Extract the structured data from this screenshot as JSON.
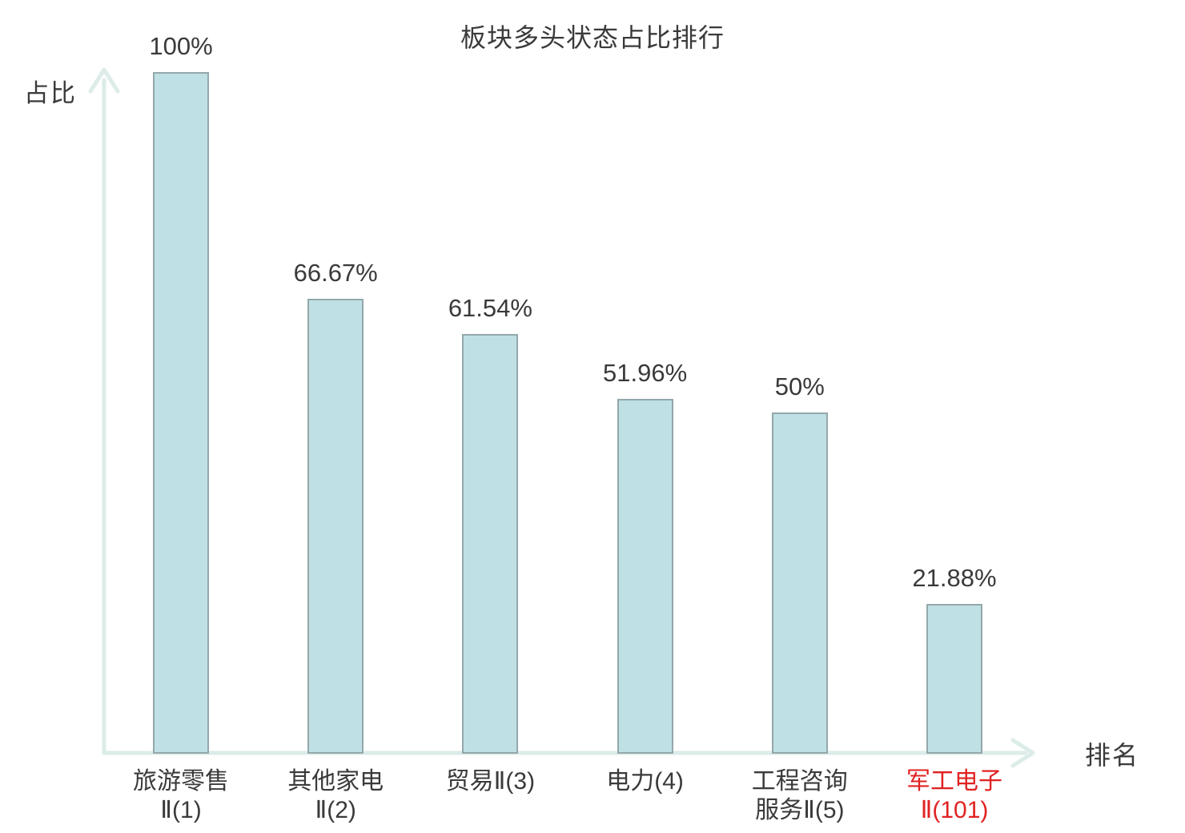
{
  "colors": {
    "bar_fill": "#bfe0e4",
    "bar_border": "#93a8ab",
    "axis": "#dcece9",
    "text": "#3a3a3a",
    "highlight_text": "#e02222",
    "background": "#ffffff"
  },
  "chart_data": {
    "type": "bar",
    "title": "板块多头状态占比排行",
    "xlabel": "排名",
    "ylabel": "占比",
    "ylim": [
      0,
      100
    ],
    "grid": false,
    "legend": null,
    "categories": [
      "旅游零售Ⅱ(1)",
      "其他家电Ⅱ(2)",
      "贸易Ⅱ(3)",
      "电力(4)",
      "工程咨询服务Ⅱ(5)",
      "军工电子Ⅱ(101)"
    ],
    "values": [
      100,
      66.67,
      61.54,
      51.96,
      50,
      21.88
    ],
    "bars": [
      {
        "category": "旅游零售Ⅱ(1)",
        "label_lines": [
          "旅游零售",
          "Ⅱ(1)"
        ],
        "value": 100,
        "value_label": "100%",
        "highlight": false
      },
      {
        "category": "其他家电Ⅱ(2)",
        "label_lines": [
          "其他家电",
          "Ⅱ(2)"
        ],
        "value": 66.67,
        "value_label": "66.67%",
        "highlight": false
      },
      {
        "category": "贸易Ⅱ(3)",
        "label_lines": [
          "贸易Ⅱ(3)"
        ],
        "value": 61.54,
        "value_label": "61.54%",
        "highlight": false
      },
      {
        "category": "电力(4)",
        "label_lines": [
          "电力(4)"
        ],
        "value": 51.96,
        "value_label": "51.96%",
        "highlight": false
      },
      {
        "category": "工程咨询服务Ⅱ(5)",
        "label_lines": [
          "工程咨询",
          "服务Ⅱ(5)"
        ],
        "value": 50,
        "value_label": "50%",
        "highlight": false
      },
      {
        "category": "军工电子Ⅱ(101)",
        "label_lines": [
          "军工电子",
          "Ⅱ(101)"
        ],
        "value": 21.88,
        "value_label": "21.88%",
        "highlight": true
      }
    ]
  }
}
